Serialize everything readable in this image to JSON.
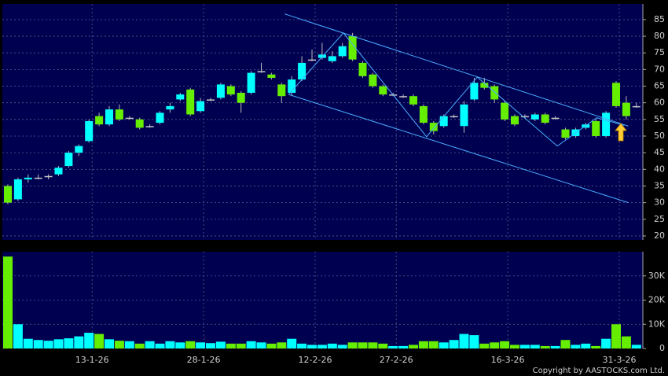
{
  "chart_data": [
    {
      "type": "candlestick",
      "categories": [
        null,
        null,
        null,
        null,
        null,
        null,
        null,
        null,
        "13-1-26",
        null,
        null,
        null,
        null,
        null,
        null,
        null,
        null,
        null,
        null,
        "28-1-26",
        null,
        null,
        null,
        null,
        null,
        null,
        null,
        null,
        null,
        null,
        "12-2-26",
        null,
        null,
        null,
        null,
        null,
        null,
        null,
        "27-2-26",
        null,
        null,
        null,
        null,
        null,
        null,
        null,
        null,
        null,
        null,
        "16-3-26",
        null,
        null,
        null,
        null,
        null,
        null,
        null,
        null,
        null,
        null,
        "31-3-26",
        null,
        null
      ],
      "open": [
        35,
        31,
        37,
        37.5,
        38,
        38.5,
        41,
        45,
        48.5,
        56,
        53.5,
        58,
        55.5,
        55,
        53,
        54,
        58,
        61,
        64,
        57.5,
        61,
        61.5,
        65,
        63,
        63,
        69.5,
        68.5,
        65.5,
        63,
        67,
        73,
        73.5,
        72.5,
        74,
        80,
        72,
        68.5,
        65,
        62.5,
        62,
        62,
        59,
        54,
        53,
        56,
        53,
        61,
        66,
        65,
        60,
        56,
        56,
        55,
        56.5,
        55.5,
        52,
        50,
        52.5,
        54.5,
        50,
        66,
        60,
        59
      ],
      "high": [
        35.5,
        37.5,
        38.5,
        38.5,
        38.5,
        41,
        45.5,
        47.5,
        55,
        57,
        59,
        59.5,
        56,
        55.5,
        53.5,
        57.5,
        60,
        63,
        64.5,
        61.5,
        61.5,
        66,
        65.5,
        63.5,
        69.5,
        72,
        69,
        66,
        68,
        74,
        76,
        78,
        75.5,
        78,
        81,
        72.5,
        69,
        65.5,
        63,
        62.5,
        62.5,
        59.5,
        54.5,
        56.5,
        56.5,
        60.5,
        67.5,
        67.5,
        65.5,
        60.5,
        56.5,
        56.5,
        57,
        57,
        56,
        52.5,
        52.5,
        54,
        55,
        57.5,
        66.5,
        62,
        60
      ],
      "low": [
        29.5,
        30.5,
        36,
        37,
        37,
        38,
        40.5,
        44,
        48,
        53,
        53,
        54.5,
        55,
        52,
        52.5,
        53.5,
        57,
        60.5,
        56,
        57,
        60.5,
        61,
        62,
        57,
        62.5,
        69,
        67,
        60,
        62,
        66.5,
        72.5,
        73,
        72,
        73.5,
        72.5,
        67.5,
        64.5,
        62,
        62,
        61.5,
        59,
        53.5,
        50.5,
        52.5,
        55.5,
        51,
        60.5,
        64,
        60,
        54.5,
        53,
        55.5,
        54.5,
        53.5,
        55,
        49,
        49.5,
        52,
        49.5,
        49.5,
        58.5,
        55,
        58.5
      ],
      "close": [
        30,
        37,
        37.5,
        37.5,
        38,
        40.5,
        45,
        47,
        54.5,
        53.5,
        58,
        55,
        55.5,
        52.5,
        53,
        57,
        59,
        62.5,
        56.5,
        60.5,
        61,
        65.5,
        62.5,
        60,
        69,
        69.5,
        67.5,
        62,
        67,
        72,
        73,
        74.5,
        74,
        77,
        73,
        68,
        65,
        62.5,
        62.5,
        62,
        59.5,
        54,
        51.5,
        56,
        56,
        59.5,
        66,
        64.5,
        61,
        55,
        53.5,
        56,
        56.5,
        54,
        55.5,
        49.5,
        52,
        53.5,
        50,
        57,
        59,
        56,
        59
      ],
      "up_color": "#00ffff",
      "down_color": "#66ee00",
      "flat_color": "#c8c8c8",
      "ylim": [
        18.8,
        89.7
      ],
      "yticks": [
        20,
        25,
        30,
        35,
        40,
        45,
        50,
        55,
        60,
        65,
        70,
        75,
        80,
        85
      ],
      "grid": true,
      "trendlines": [
        {
          "color": "#4aaeff",
          "x": [
            27.3,
            61.2
          ],
          "y": [
            86.7,
            53
          ]
        },
        {
          "color": "#4aaeff",
          "x": [
            27.7,
            61.2
          ],
          "y": [
            62.5,
            30
          ]
        },
        {
          "color": "#4aaeff",
          "x": [
            27.7,
            33.1,
            41.3,
            46.3,
            54.2,
            58.1,
            60.8
          ],
          "y": [
            62.5,
            81,
            49.8,
            67.7,
            47,
            55.5,
            53.2
          ]
        }
      ]
    },
    {
      "type": "bar",
      "values": [
        38000,
        10000,
        4000,
        3500,
        3200,
        3800,
        4200,
        5000,
        6500,
        6000,
        3800,
        3200,
        3000,
        2000,
        3000,
        2000,
        3000,
        2500,
        3000,
        2500,
        2200,
        2800,
        2000,
        2000,
        3000,
        2500,
        2000,
        2500,
        4000,
        2000,
        1500,
        1500,
        2000,
        1500,
        2500,
        2500,
        2500,
        2000,
        1000,
        1000,
        1500,
        3000,
        3000,
        2500,
        3500,
        6000,
        5500,
        2000,
        2500,
        3000,
        1500,
        1500,
        1500,
        1000,
        1000,
        3500,
        1500,
        2000,
        1000,
        4000,
        10000,
        5000,
        1500
      ],
      "ylim": [
        0,
        40000
      ],
      "yticks": [
        {
          "value": 0,
          "label": "0"
        },
        {
          "value": 10000,
          "label": "10K"
        },
        {
          "value": 20000,
          "label": "20K"
        },
        {
          "value": 30000,
          "label": "30K"
        }
      ],
      "grid": true
    }
  ],
  "footer": {
    "copyright": "Copyright by AASTOCKS.com Ltd."
  }
}
